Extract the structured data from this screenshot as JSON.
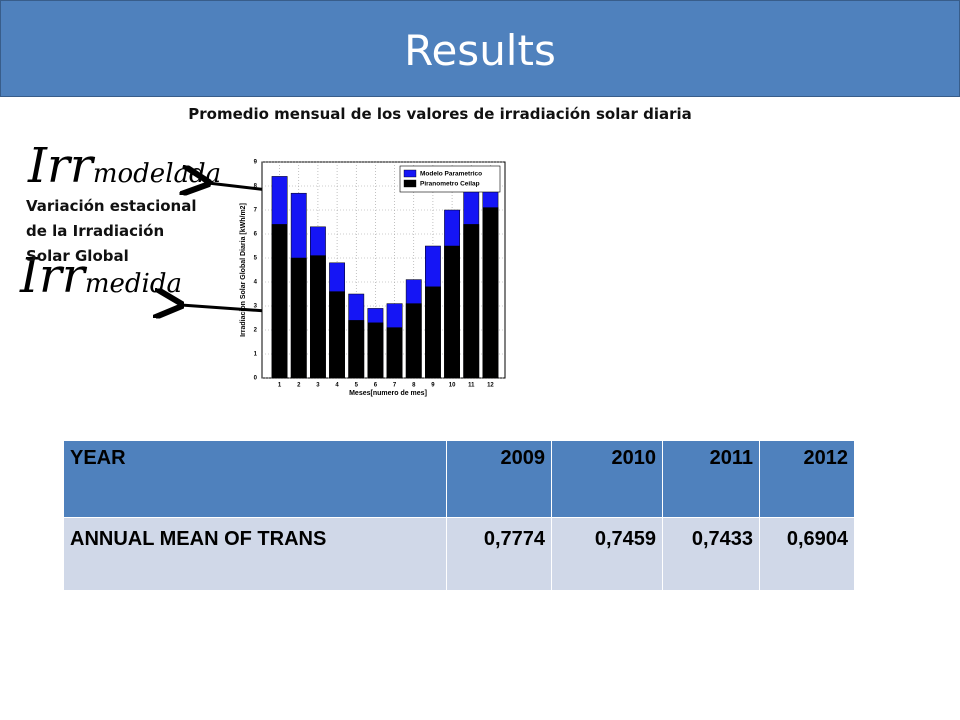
{
  "header": {
    "title": "Results"
  },
  "subtitle": "Promedio mensual de los valores de irradiación solar diaria",
  "formulas": [
    {
      "symbol": "Irr",
      "subscript": "modelada"
    },
    {
      "symbol": "Irr",
      "subscript": "medida"
    }
  ],
  "annotation": "Variación estacional de la Irradiación Solar Global",
  "chart_data": {
    "type": "bar",
    "overlay": true,
    "xlabel": "Meses[numero de mes]",
    "ylabel": "Irradiacion Solar Global Diaria [kWh/m2]",
    "categories": [
      "1",
      "2",
      "3",
      "4",
      "5",
      "6",
      "7",
      "8",
      "9",
      "10",
      "11",
      "12"
    ],
    "series": [
      {
        "name": "Modelo Parametrico",
        "color": "#1515f5",
        "values": [
          8.4,
          7.7,
          6.3,
          4.8,
          3.5,
          2.9,
          3.1,
          4.1,
          5.5,
          7.0,
          8.3,
          8.8
        ]
      },
      {
        "name": "Piranometro Ceilap",
        "color": "#000000",
        "values": [
          6.4,
          5.0,
          5.1,
          3.6,
          2.4,
          2.3,
          2.1,
          3.1,
          3.8,
          5.5,
          6.4,
          7.1
        ]
      }
    ],
    "ylim": [
      0,
      9
    ],
    "yticks": [
      0,
      1,
      2,
      3,
      4,
      5,
      6,
      7,
      8,
      9
    ],
    "grid": true,
    "legend": "top-right"
  },
  "table": {
    "header": [
      "YEAR",
      "2009",
      "2010",
      "2011",
      "2012"
    ],
    "rows": [
      [
        "ANNUAL MEAN OF TRANS",
        "0,7774",
        "0,7459",
        "0,7433",
        "0,6904"
      ]
    ]
  }
}
